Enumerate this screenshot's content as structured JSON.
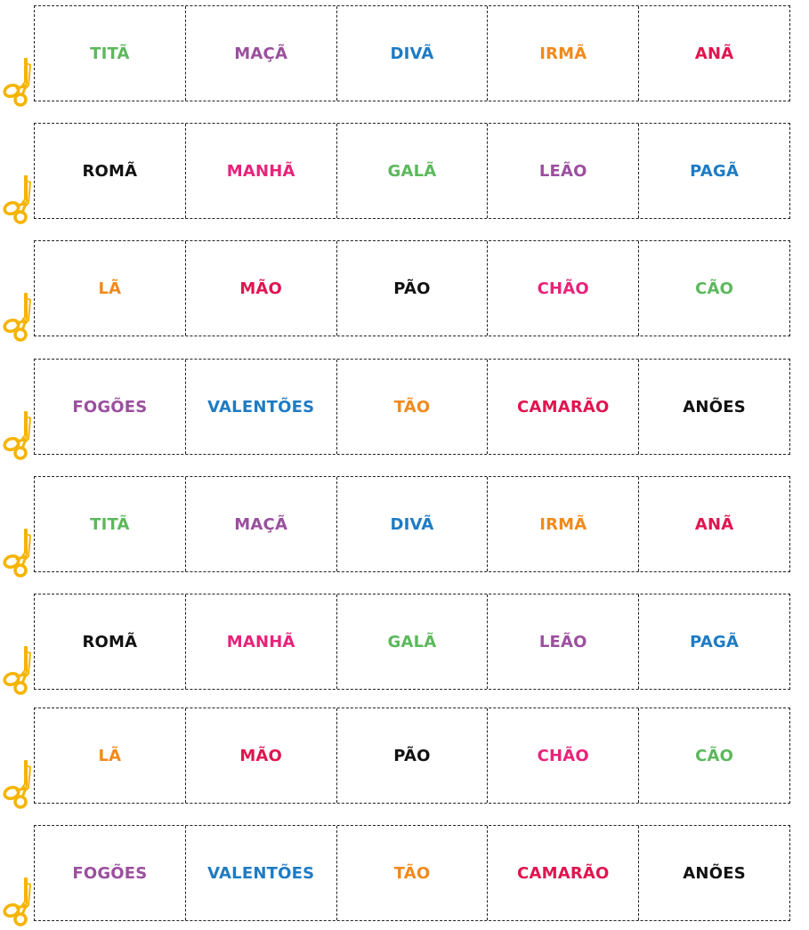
{
  "colors": {
    "green": "#5cb85c",
    "purple": "#9b4f9e",
    "blue": "#1e7bc4",
    "orange": "#f08a1c",
    "red": "#e0154f",
    "pink": "#e8237a",
    "black": "#111111",
    "scissors": "#f5b400"
  },
  "scissors_icon": "scissors-icon",
  "strips": [
    {
      "words": [
        {
          "text": "TITÃ",
          "color": "#5cb85c"
        },
        {
          "text": "MAÇÃ",
          "color": "#9b4f9e"
        },
        {
          "text": "DIVÃ",
          "color": "#1e7bc4"
        },
        {
          "text": "IRMÃ",
          "color": "#f08a1c"
        },
        {
          "text": "ANÃ",
          "color": "#e0154f"
        }
      ]
    },
    {
      "words": [
        {
          "text": "ROMÃ",
          "color": "#111111"
        },
        {
          "text": "MANHÃ",
          "color": "#e8237a"
        },
        {
          "text": "GALÃ",
          "color": "#5cb85c"
        },
        {
          "text": "LEÃO",
          "color": "#9b4f9e"
        },
        {
          "text": "PAGÃ",
          "color": "#1e7bc4"
        }
      ]
    },
    {
      "words": [
        {
          "text": "LÃ",
          "color": "#f08a1c"
        },
        {
          "text": "MÃO",
          "color": "#e0154f"
        },
        {
          "text": "PÃO",
          "color": "#111111"
        },
        {
          "text": "CHÃO",
          "color": "#e8237a"
        },
        {
          "text": "CÃO",
          "color": "#5cb85c"
        }
      ]
    },
    {
      "words": [
        {
          "text": "FOGÕES",
          "color": "#9b4f9e"
        },
        {
          "text": "VALENTÕES",
          "color": "#1e7bc4"
        },
        {
          "text": "TÃO",
          "color": "#f08a1c"
        },
        {
          "text": "CAMARÃO",
          "color": "#e0154f"
        },
        {
          "text": "ANÕES",
          "color": "#111111"
        }
      ]
    },
    {
      "words": [
        {
          "text": "TITÃ",
          "color": "#5cb85c"
        },
        {
          "text": "MAÇÃ",
          "color": "#9b4f9e"
        },
        {
          "text": "DIVÃ",
          "color": "#1e7bc4"
        },
        {
          "text": "IRMÃ",
          "color": "#f08a1c"
        },
        {
          "text": "ANÃ",
          "color": "#e0154f"
        }
      ]
    },
    {
      "words": [
        {
          "text": "ROMÃ",
          "color": "#111111"
        },
        {
          "text": "MANHÃ",
          "color": "#e8237a"
        },
        {
          "text": "GALÃ",
          "color": "#5cb85c"
        },
        {
          "text": "LEÃO",
          "color": "#9b4f9e"
        },
        {
          "text": "PAGÃ",
          "color": "#1e7bc4"
        }
      ]
    },
    {
      "words": [
        {
          "text": "LÃ",
          "color": "#f08a1c"
        },
        {
          "text": "MÃO",
          "color": "#e0154f"
        },
        {
          "text": "PÃO",
          "color": "#111111"
        },
        {
          "text": "CHÃO",
          "color": "#e8237a"
        },
        {
          "text": "CÃO",
          "color": "#5cb85c"
        }
      ]
    },
    {
      "words": [
        {
          "text": "FOGÕES",
          "color": "#9b4f9e"
        },
        {
          "text": "VALENTÕES",
          "color": "#1e7bc4"
        },
        {
          "text": "TÃO",
          "color": "#f08a1c"
        },
        {
          "text": "CAMARÃO",
          "color": "#e0154f"
        },
        {
          "text": "ANÕES",
          "color": "#111111"
        }
      ]
    }
  ]
}
